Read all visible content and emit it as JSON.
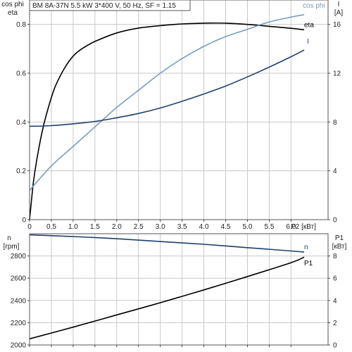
{
  "title": "BM 8A-37N   5.5 kW   3*400 V, 50 Hz, SF = 1.15",
  "chart_data": [
    {
      "type": "line",
      "x_unit_label": "P2 [кВт]",
      "x_ticks": [
        0,
        0.5,
        1.0,
        1.5,
        2.0,
        2.5,
        3.0,
        3.5,
        4.0,
        4.5,
        5.0,
        5.5,
        6.0
      ],
      "x_tick_labels": [
        "0",
        "0.5",
        "1.0",
        "1.5",
        "2.0",
        "2.5",
        "3.0",
        "3.5",
        "4.0",
        "4.5",
        "5.0",
        "5.5",
        "6.0"
      ],
      "xlim": [
        0,
        6.85
      ],
      "ylabel_left": [
        "cos phi",
        "eta"
      ],
      "ylim_left": [
        0,
        0.9
      ],
      "yticks_left": [
        "0",
        "0.2",
        "0.4",
        "0.6",
        "0.8"
      ],
      "ylabel_right": [
        "I",
        "[A]"
      ],
      "ylim_right": [
        0,
        18
      ],
      "yticks_right": [
        "0",
        "4",
        "8",
        "12",
        "16"
      ],
      "grid": true,
      "series": [
        {
          "name": "eta",
          "axis": "left",
          "color": "#000000",
          "x": [
            0,
            0.05,
            0.1,
            0.2,
            0.3,
            0.4,
            0.5,
            0.6,
            0.8,
            1.0,
            1.2,
            1.5,
            2.0,
            2.5,
            3.0,
            3.5,
            4.0,
            4.5,
            5.0,
            5.5,
            6.0,
            6.3
          ],
          "y": [
            0,
            0.09,
            0.17,
            0.28,
            0.37,
            0.44,
            0.5,
            0.55,
            0.62,
            0.67,
            0.7,
            0.73,
            0.765,
            0.785,
            0.795,
            0.802,
            0.805,
            0.805,
            0.8,
            0.792,
            0.784,
            0.778
          ]
        },
        {
          "name": "cos phi",
          "axis": "left",
          "color": "#7a9cc0",
          "x": [
            0,
            0.5,
            1.0,
            1.5,
            2.0,
            2.5,
            3.0,
            3.5,
            4.0,
            4.5,
            5.0,
            5.5,
            6.0,
            6.3
          ],
          "y": [
            0.12,
            0.22,
            0.3,
            0.38,
            0.46,
            0.53,
            0.6,
            0.66,
            0.71,
            0.75,
            0.78,
            0.81,
            0.83,
            0.84
          ]
        },
        {
          "name": "I",
          "axis": "right",
          "color": "#1f3f6a",
          "x": [
            0,
            0.5,
            1.0,
            1.5,
            2.0,
            2.5,
            3.0,
            3.5,
            4.0,
            4.5,
            5.0,
            5.5,
            6.0,
            6.3
          ],
          "y": [
            7.65,
            7.7,
            7.85,
            8.05,
            8.35,
            8.7,
            9.15,
            9.7,
            10.3,
            10.95,
            11.7,
            12.5,
            13.35,
            13.9
          ]
        }
      ]
    },
    {
      "type": "line",
      "x_unit_label": "",
      "xlim": [
        0,
        6.85
      ],
      "ylabel_left": [
        "n",
        "[rpm]"
      ],
      "ylim_left": [
        2000,
        3000
      ],
      "yticks_left": [
        "2000",
        "2200",
        "2400",
        "2600",
        "2800"
      ],
      "ylabel_right": [
        "P1",
        "[кВт]"
      ],
      "ylim_right": [
        0,
        10
      ],
      "yticks_right": [
        "0",
        "2",
        "4",
        "6",
        "8"
      ],
      "grid": true,
      "series": [
        {
          "name": "n",
          "axis": "left",
          "color": "#1f3f6a",
          "x": [
            0,
            1,
            2,
            3,
            4,
            5,
            6,
            6.3
          ],
          "y": [
            2990,
            2975,
            2955,
            2930,
            2905,
            2875,
            2845,
            2835
          ]
        },
        {
          "name": "P1",
          "axis": "right",
          "color": "#000000",
          "x": [
            0,
            1,
            2,
            3,
            4,
            5,
            6,
            6.3
          ],
          "y": [
            0.55,
            1.6,
            2.7,
            3.8,
            4.95,
            6.15,
            7.4,
            7.9
          ]
        }
      ]
    }
  ]
}
